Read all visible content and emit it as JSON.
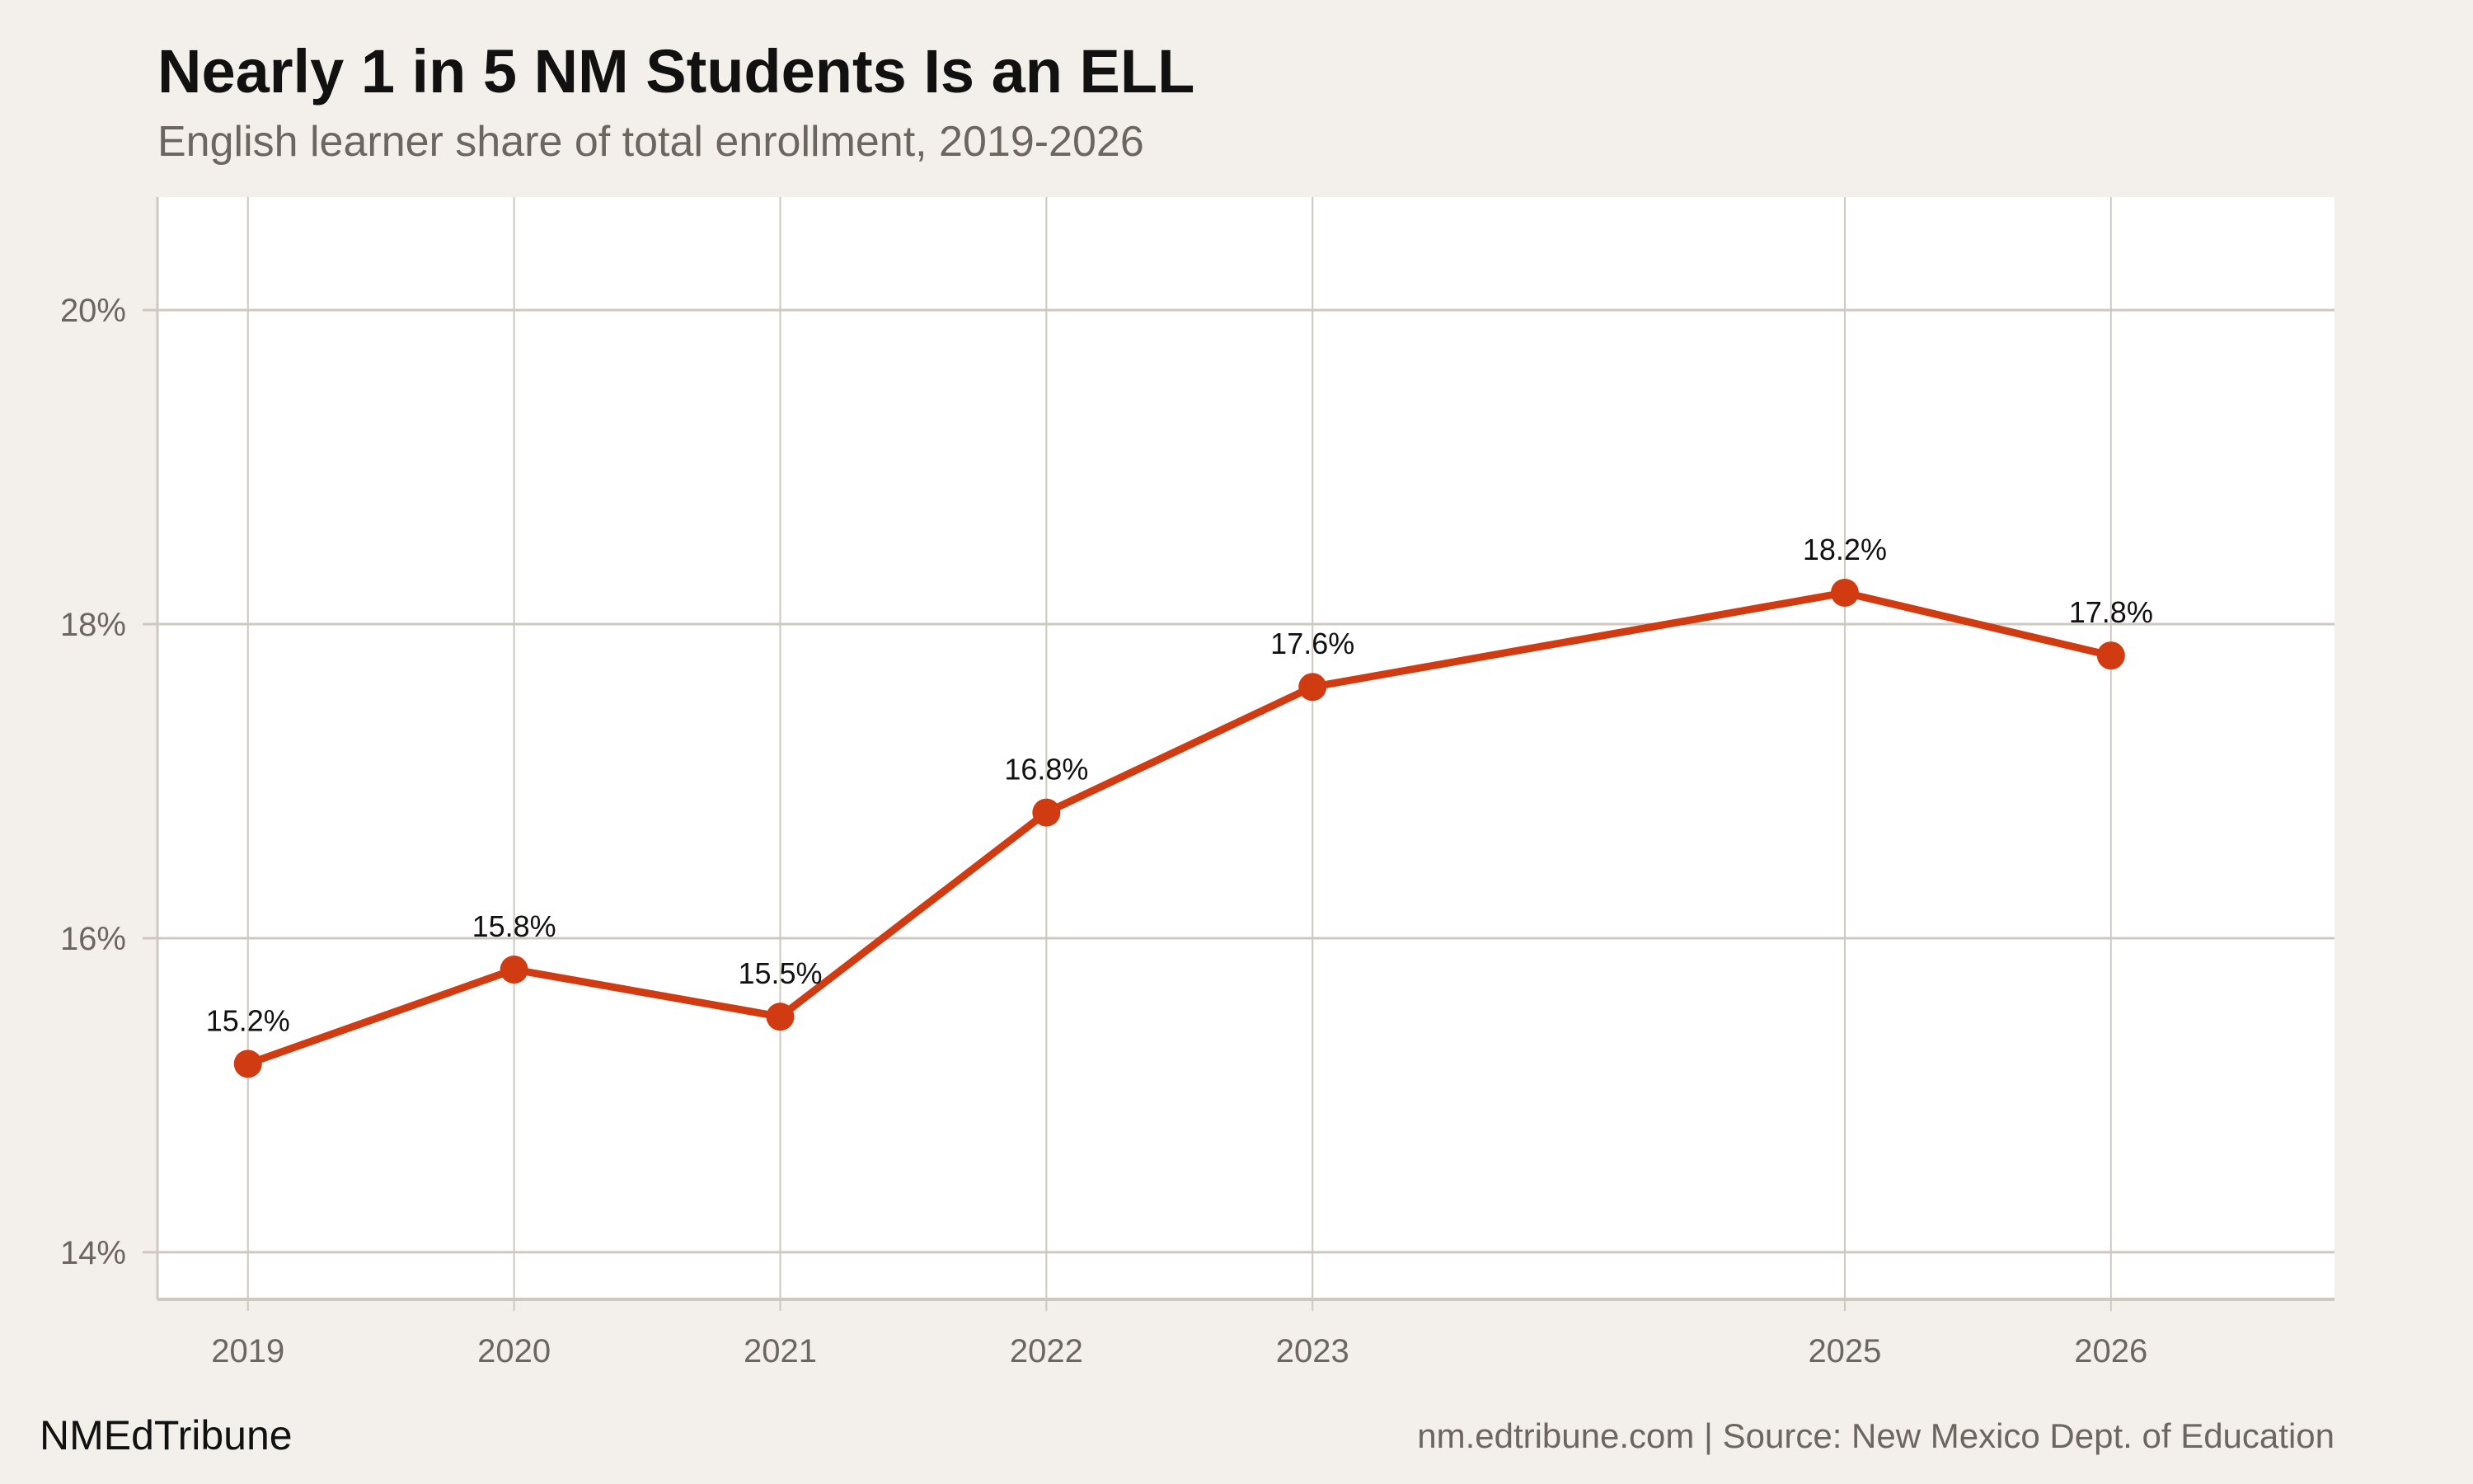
{
  "chart_data": {
    "type": "line",
    "title": "Nearly 1 in 5 NM Students Is an ELL",
    "subtitle": "English learner share of total enrollment, 2019-2026",
    "xlabel": "",
    "ylabel": "",
    "x": [
      2019,
      2020,
      2021,
      2022,
      2023,
      2025,
      2026
    ],
    "x_tick_labels": [
      "2019",
      "2020",
      "2021",
      "2022",
      "2023",
      "2025",
      "2026"
    ],
    "values": [
      15.2,
      15.8,
      15.5,
      16.8,
      17.6,
      18.2,
      17.8
    ],
    "data_labels": [
      "15.2%",
      "15.8%",
      "15.5%",
      "16.8%",
      "17.6%",
      "18.2%",
      "17.8%"
    ],
    "y_ticks": [
      14,
      16,
      18,
      20
    ],
    "y_tick_labels": [
      "14%",
      "16%",
      "18%",
      "20%"
    ],
    "xlim": [
      2018.66,
      2026.84
    ],
    "ylim": [
      13.7,
      20.72
    ],
    "grid": true,
    "legend": "none",
    "colors": {
      "line": "#d13b12",
      "grid": "#cdc8c0",
      "plot_bg": "#ffffff",
      "page_bg": "#f3f0eb"
    }
  },
  "footer": {
    "brand": "NMEdTribune",
    "source": "nm.edtribune.com | Source: New Mexico Dept. of Education"
  }
}
